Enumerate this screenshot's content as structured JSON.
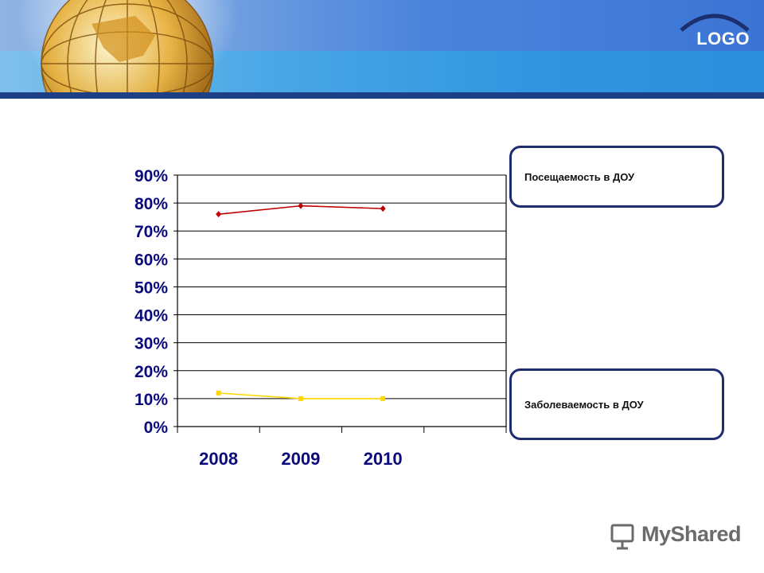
{
  "header": {
    "logo_text": "LOGO"
  },
  "legend": [
    {
      "label": "Посещаемость в ДОУ",
      "color": "#c00000"
    },
    {
      "label": "Заболеваемость в ДОУ",
      "color": "#ffd700"
    }
  ],
  "watermark": "MyShared",
  "chart_data": {
    "type": "line",
    "categories": [
      "2008",
      "2009",
      "2010"
    ],
    "y_ticks": [
      "0%",
      "10%",
      "20%",
      "30%",
      "40%",
      "50%",
      "60%",
      "70%",
      "80%",
      "90%"
    ],
    "ylim": [
      0,
      90
    ],
    "grid": true,
    "legend_placement": "right",
    "series": [
      {
        "name": "Посещаемость в ДОУ",
        "values": [
          76,
          79,
          78
        ],
        "color": "#c00000"
      },
      {
        "name": "Заболеваемость в ДОУ",
        "values": [
          12,
          10,
          10
        ],
        "color": "#ffd700"
      }
    ]
  }
}
